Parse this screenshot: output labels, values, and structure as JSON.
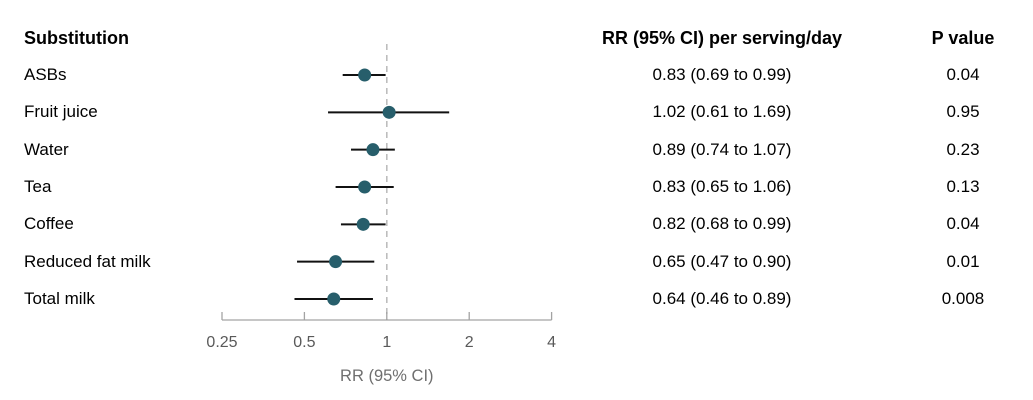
{
  "columns": {
    "substitution_header": "Substitution",
    "rr_header": "RR (95% CI) per serving/day",
    "p_header": "P value"
  },
  "chart_data": {
    "type": "forest",
    "x_scale": "log2",
    "xlabel": "RR (95% CI)",
    "xlim": [
      0.25,
      4
    ],
    "x_tick_values": [
      0.25,
      0.5,
      1,
      2,
      4
    ],
    "x_tick_labels": [
      "0.25",
      "0.5",
      "1",
      "2",
      "4"
    ],
    "reference_line": 1,
    "rows": [
      {
        "label": "ASBs",
        "rr": 0.83,
        "ci_low": 0.69,
        "ci_high": 0.99,
        "rr_text": "0.83 (0.69 to 0.99)",
        "p_text": "0.04"
      },
      {
        "label": "Fruit juice",
        "rr": 1.02,
        "ci_low": 0.61,
        "ci_high": 1.69,
        "rr_text": "1.02 (0.61 to 1.69)",
        "p_text": "0.95"
      },
      {
        "label": "Water",
        "rr": 0.89,
        "ci_low": 0.74,
        "ci_high": 1.07,
        "rr_text": "0.89 (0.74 to 1.07)",
        "p_text": "0.23"
      },
      {
        "label": "Tea",
        "rr": 0.83,
        "ci_low": 0.65,
        "ci_high": 1.06,
        "rr_text": "0.83 (0.65 to 1.06)",
        "p_text": "0.13"
      },
      {
        "label": "Coffee",
        "rr": 0.82,
        "ci_low": 0.68,
        "ci_high": 0.99,
        "rr_text": "0.82 (0.68 to 0.99)",
        "p_text": "0.04"
      },
      {
        "label": "Reduced fat milk",
        "rr": 0.65,
        "ci_low": 0.47,
        "ci_high": 0.9,
        "rr_text": "0.65 (0.47 to 0.90)",
        "p_text": "0.01"
      },
      {
        "label": "Total milk",
        "rr": 0.64,
        "ci_low": 0.46,
        "ci_high": 0.89,
        "rr_text": "0.64 (0.46 to 0.89)",
        "p_text": "0.008"
      }
    ],
    "colors": {
      "marker": "#275e6b",
      "ci_line": "#111111",
      "reference_line": "#bdbdbd",
      "axis": "#a3a3a3",
      "tick_label": "#595959",
      "axis_title": "#6f6f6f",
      "text": "#000000"
    }
  }
}
